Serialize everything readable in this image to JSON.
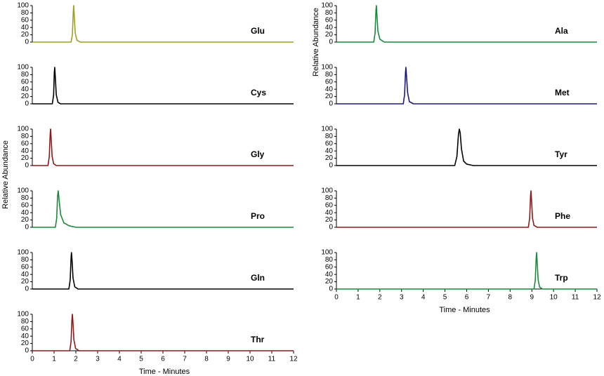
{
  "chart_data": [
    {
      "type": "line",
      "label": "Glu",
      "color": "#a0a020",
      "x": [
        0,
        1.78,
        1.84,
        1.88,
        1.9,
        1.93,
        1.97,
        2.05,
        2.2,
        12
      ],
      "values": [
        0,
        0,
        20,
        80,
        100,
        70,
        25,
        5,
        0,
        0
      ],
      "xlim": [
        0,
        12
      ],
      "ylim": [
        0,
        100
      ],
      "yticks": [
        0,
        20,
        40,
        60,
        80,
        100
      ]
    },
    {
      "type": "line",
      "label": "Cys",
      "color": "#000000",
      "x": [
        0,
        0.92,
        0.98,
        1.01,
        1.03,
        1.06,
        1.1,
        1.18,
        1.3,
        12
      ],
      "values": [
        0,
        0,
        25,
        85,
        100,
        70,
        25,
        4,
        0,
        0
      ],
      "xlim": [
        0,
        12
      ],
      "ylim": [
        0,
        100
      ],
      "yticks": [
        0,
        20,
        40,
        60,
        80,
        100
      ]
    },
    {
      "type": "line",
      "label": "Gly",
      "color": "#8b1a1a",
      "ylabel": "Relative Abundance",
      "x": [
        0,
        0.72,
        0.78,
        0.82,
        0.84,
        0.87,
        0.91,
        0.98,
        1.1,
        12
      ],
      "values": [
        0,
        0,
        25,
        85,
        100,
        70,
        25,
        5,
        0,
        0
      ],
      "xlim": [
        0,
        12
      ],
      "ylim": [
        0,
        100
      ],
      "yticks": [
        0,
        20,
        40,
        60,
        80,
        100
      ]
    },
    {
      "type": "line",
      "label": "Pro",
      "color": "#1a8a3a",
      "x": [
        0,
        1.06,
        1.12,
        1.16,
        1.19,
        1.23,
        1.3,
        1.45,
        1.7,
        2.0,
        12
      ],
      "values": [
        0,
        0,
        25,
        85,
        100,
        75,
        35,
        12,
        4,
        0,
        0
      ],
      "xlim": [
        0,
        12
      ],
      "ylim": [
        0,
        100
      ],
      "yticks": [
        0,
        20,
        40,
        60,
        80,
        100
      ]
    },
    {
      "type": "line",
      "label": "Gln",
      "color": "#000000",
      "x": [
        0,
        1.68,
        1.74,
        1.78,
        1.8,
        1.83,
        1.87,
        1.95,
        2.1,
        12
      ],
      "values": [
        0,
        0,
        25,
        85,
        100,
        75,
        30,
        6,
        0,
        0
      ],
      "xlim": [
        0,
        12
      ],
      "ylim": [
        0,
        100
      ],
      "yticks": [
        0,
        20,
        40,
        60,
        80,
        100
      ]
    },
    {
      "type": "line",
      "label": "Thr",
      "color": "#8b1a1a",
      "xlabel": "Time - Minutes",
      "x": [
        0,
        1.72,
        1.78,
        1.82,
        1.84,
        1.87,
        1.91,
        1.99,
        2.15,
        12
      ],
      "values": [
        0,
        0,
        25,
        85,
        100,
        75,
        30,
        6,
        0,
        0
      ],
      "xlim": [
        0,
        12
      ],
      "ylim": [
        0,
        100
      ],
      "yticks": [
        0,
        20,
        40,
        60,
        80,
        100
      ],
      "xticks": [
        0,
        1,
        2,
        3,
        4,
        5,
        6,
        7,
        8,
        9,
        10,
        11,
        12
      ]
    },
    {
      "type": "line",
      "label": "Ala",
      "color": "#1a8a3a",
      "x": [
        0,
        1.72,
        1.78,
        1.82,
        1.84,
        1.87,
        1.91,
        2.0,
        2.2,
        12
      ],
      "values": [
        0,
        0,
        25,
        85,
        100,
        70,
        30,
        8,
        0,
        0
      ],
      "xlim": [
        0,
        12
      ],
      "ylim": [
        0,
        100
      ],
      "yticks": [
        0,
        20,
        40,
        60,
        80,
        100
      ]
    },
    {
      "type": "line",
      "label": "Met",
      "color": "#1a1a80",
      "ylabel": "Relative Abundance",
      "x": [
        0,
        3.08,
        3.14,
        3.18,
        3.2,
        3.23,
        3.28,
        3.36,
        3.55,
        12
      ],
      "values": [
        0,
        0,
        25,
        85,
        100,
        75,
        30,
        6,
        0,
        0
      ],
      "xlim": [
        0,
        12
      ],
      "ylim": [
        0,
        100
      ],
      "yticks": [
        0,
        20,
        40,
        60,
        80,
        100
      ]
    },
    {
      "type": "line",
      "label": "Tyr",
      "color": "#000000",
      "x": [
        0,
        5.45,
        5.55,
        5.62,
        5.66,
        5.7,
        5.76,
        5.86,
        6.0,
        6.3,
        12
      ],
      "values": [
        0,
        0,
        25,
        85,
        100,
        90,
        45,
        12,
        4,
        0,
        0
      ],
      "xlim": [
        0,
        12
      ],
      "ylim": [
        0,
        100
      ],
      "yticks": [
        0,
        20,
        40,
        60,
        80,
        100
      ]
    },
    {
      "type": "line",
      "label": "Phe",
      "color": "#8b1a1a",
      "x": [
        0,
        8.84,
        8.9,
        8.94,
        8.96,
        8.99,
        9.03,
        9.1,
        9.25,
        12
      ],
      "values": [
        0,
        0,
        25,
        85,
        100,
        70,
        25,
        5,
        0,
        0
      ],
      "xlim": [
        0,
        12
      ],
      "ylim": [
        0,
        100
      ],
      "yticks": [
        0,
        20,
        40,
        60,
        80,
        100
      ]
    },
    {
      "type": "line",
      "label": "Trp",
      "color": "#1a8a3a",
      "xlabel": "Time - Minutes",
      "x": [
        0,
        9.1,
        9.16,
        9.2,
        9.22,
        9.25,
        9.29,
        9.36,
        9.5,
        12
      ],
      "values": [
        0,
        0,
        25,
        85,
        100,
        70,
        25,
        5,
        0,
        0
      ],
      "xlim": [
        0,
        12
      ],
      "ylim": [
        0,
        100
      ],
      "yticks": [
        0,
        20,
        40,
        60,
        80,
        100
      ],
      "xticks": [
        0,
        1,
        2,
        3,
        4,
        5,
        6,
        7,
        8,
        9,
        10,
        11,
        12
      ]
    }
  ]
}
